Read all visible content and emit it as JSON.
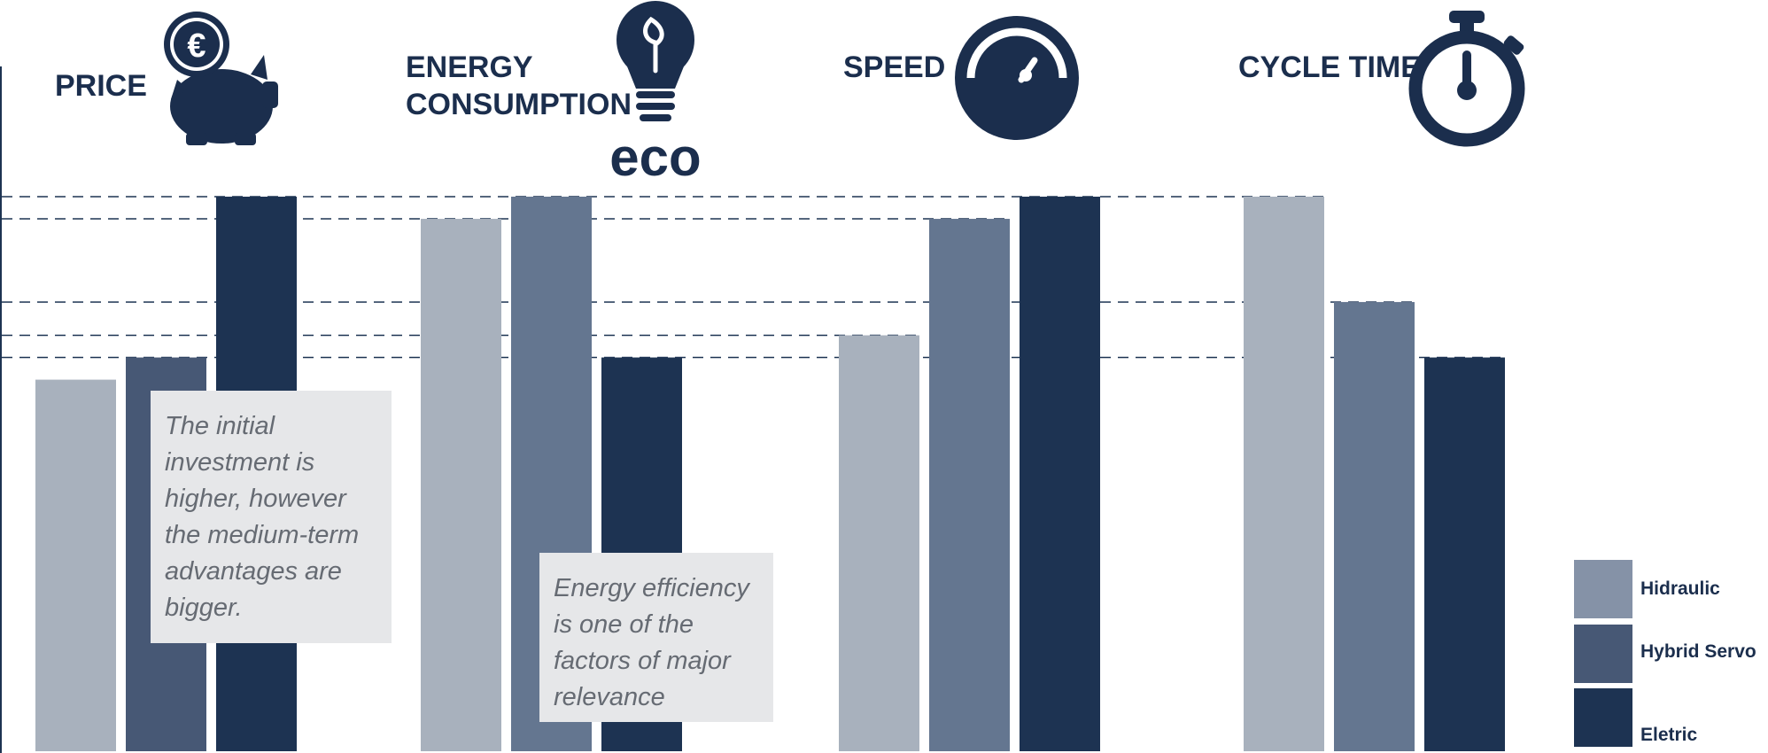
{
  "chart_data": {
    "type": "bar",
    "categories": [
      "PRICE",
      "ENERGY CONSUMPTION",
      "SPEED",
      "CYCLE TIME"
    ],
    "series": [
      {
        "name": "Hidraulic",
        "values": [
          67,
          96,
          75,
          100
        ]
      },
      {
        "name": "Hybrid Servo",
        "values": [
          71,
          100,
          96,
          81
        ]
      },
      {
        "name": "Eletric",
        "values": [
          100,
          71,
          100,
          71
        ]
      }
    ],
    "ylim": [
      0,
      100
    ],
    "reference_lines": [
      100,
      96,
      81,
      75,
      71
    ],
    "legend_position": "bottom-right",
    "colors": {
      "price_series": [
        "#a8b1bd",
        "#475875",
        "#1d3352"
      ],
      "other_series": [
        "#a8b1bd",
        "#647690",
        "#1d3352"
      ],
      "legend_swatches": [
        "#8592a7",
        "#475875",
        "#1d3352"
      ],
      "text": "#1b2e4d",
      "note_bg": "#e6e7e9",
      "note_text": "#666b73"
    },
    "icons": [
      "piggy-bank-euro-icon",
      "eco-lightbulb-icon",
      "speedometer-icon",
      "stopwatch-icon"
    ],
    "eco_label": "eco",
    "annotations": [
      {
        "lines": [
          "The initial",
          "investment is",
          "higher, however",
          "the medium-term",
          "advantages are",
          "bigger."
        ]
      },
      {
        "lines": [
          "Energy efficiency",
          "is one of the",
          "factors of major",
          "relevance"
        ]
      }
    ]
  }
}
